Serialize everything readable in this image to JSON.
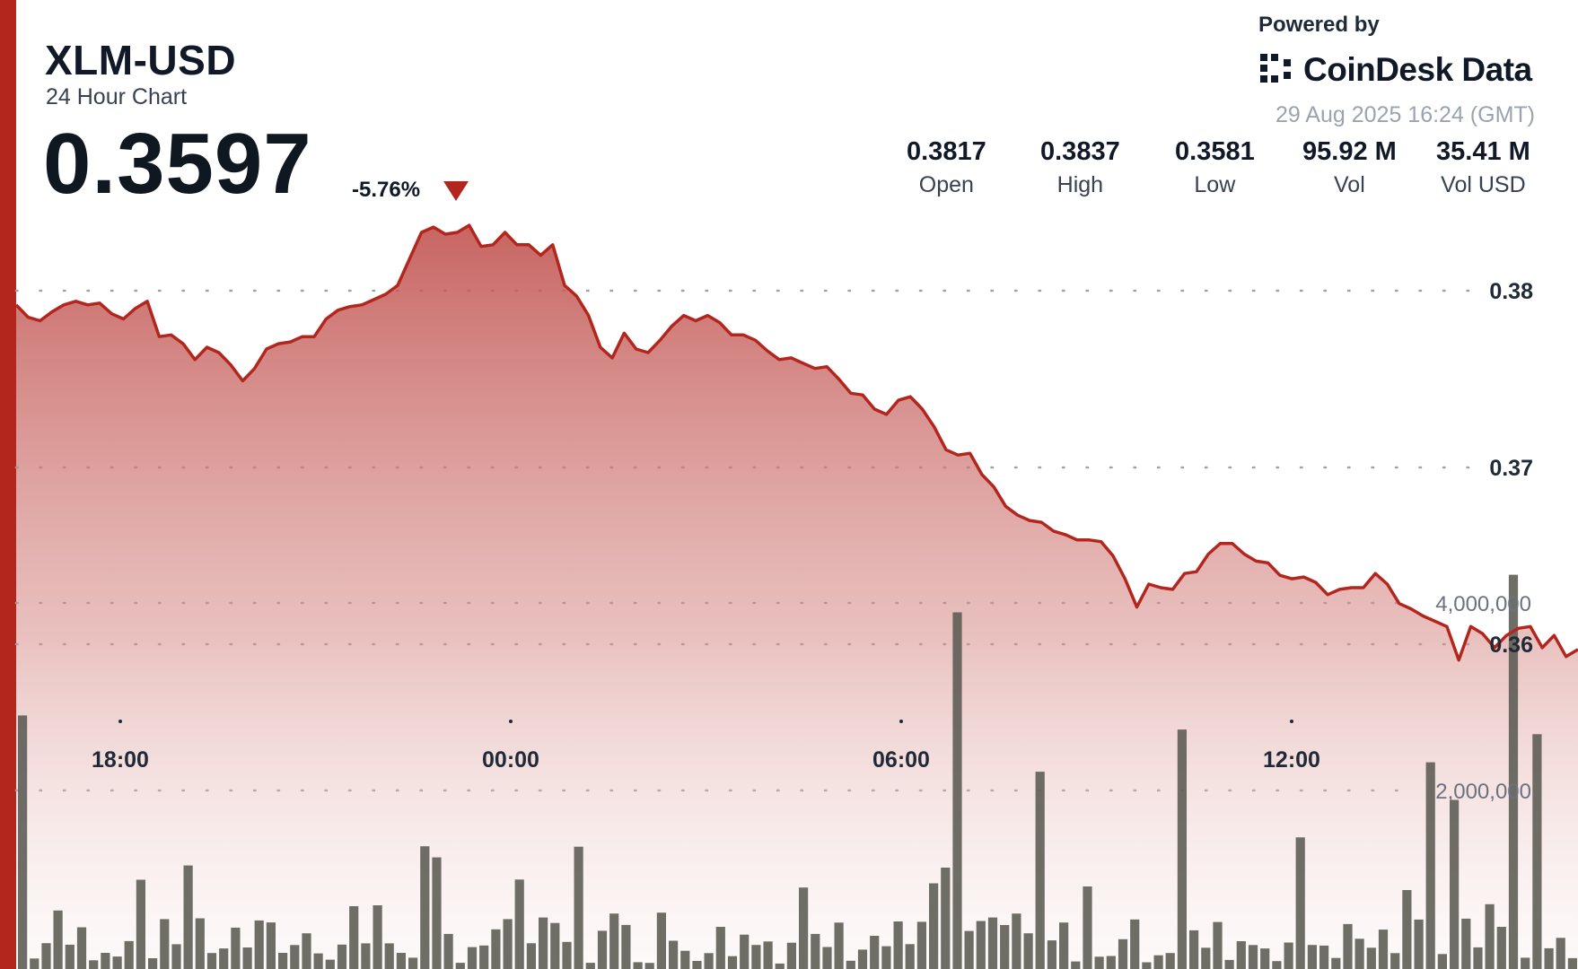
{
  "header": {
    "symbol": "XLM-USD",
    "subtitle": "24 Hour Chart",
    "price": "0.3597",
    "change": "-5.76%",
    "powered_by": "Powered by",
    "brand": "CoinDesk Data",
    "datetime": "29 Aug 2025 16:24 (GMT)"
  },
  "stats": [
    {
      "value": "0.3817",
      "label": "Open"
    },
    {
      "value": "0.3837",
      "label": "High"
    },
    {
      "value": "0.3581",
      "label": "Low"
    },
    {
      "value": "95.92 M",
      "label": "Vol"
    },
    {
      "value": "35.41 M",
      "label": "Vol USD"
    }
  ],
  "colors": {
    "accent": "#b3261e",
    "area_top": "#c0504d",
    "volume": "#5a5a52"
  },
  "chart_data": {
    "type": "area",
    "x_ticks": [
      "18:00",
      "00:00",
      "06:00",
      "12:00"
    ],
    "x_tick_hours": [
      1.6,
      7.6,
      13.6,
      19.6
    ],
    "x_range_hours": [
      0,
      24
    ],
    "price_axis": {
      "ticks": [
        0.36,
        0.37,
        0.38
      ],
      "labels": [
        "0.36",
        "0.37",
        "0.38"
      ],
      "range": [
        0.345,
        0.3885
      ]
    },
    "volume_axis": {
      "ticks": [
        2000000,
        4000000
      ],
      "labels": [
        "2,000,000",
        "4,000,000"
      ],
      "max": 4900000
    },
    "grid": true,
    "price": [
      0.3792,
      0.3785,
      0.3783,
      0.3788,
      0.3792,
      0.3794,
      0.3792,
      0.3793,
      0.3787,
      0.3784,
      0.379,
      0.3794,
      0.3774,
      0.3775,
      0.377,
      0.3761,
      0.3768,
      0.3765,
      0.3758,
      0.3749,
      0.3756,
      0.3767,
      0.377,
      0.3771,
      0.3774,
      0.3774,
      0.3784,
      0.3789,
      0.3791,
      0.3792,
      0.3795,
      0.3798,
      0.3803,
      0.3818,
      0.3833,
      0.3836,
      0.3832,
      0.3833,
      0.3837,
      0.3825,
      0.3826,
      0.3833,
      0.3826,
      0.3826,
      0.382,
      0.3826,
      0.3803,
      0.3797,
      0.3786,
      0.3768,
      0.3762,
      0.3776,
      0.3767,
      0.3765,
      0.3772,
      0.378,
      0.3786,
      0.3783,
      0.3786,
      0.3782,
      0.3775,
      0.3775,
      0.3772,
      0.3766,
      0.3761,
      0.3762,
      0.3759,
      0.3756,
      0.3757,
      0.375,
      0.3742,
      0.3741,
      0.3733,
      0.373,
      0.3738,
      0.374,
      0.3733,
      0.3723,
      0.371,
      0.3707,
      0.3708,
      0.3696,
      0.3689,
      0.3678,
      0.3673,
      0.367,
      0.3669,
      0.3664,
      0.3662,
      0.3659,
      0.3659,
      0.3658,
      0.365,
      0.3637,
      0.3621,
      0.3634,
      0.3632,
      0.3631,
      0.364,
      0.3641,
      0.3651,
      0.3657,
      0.3657,
      0.3651,
      0.3647,
      0.3646,
      0.3639,
      0.3637,
      0.3638,
      0.3635,
      0.3628,
      0.3631,
      0.3632,
      0.3632,
      0.364,
      0.3634,
      0.3623,
      0.362,
      0.3616,
      0.3613,
      0.361,
      0.3591,
      0.361,
      0.3606,
      0.3598,
      0.3605,
      0.3609,
      0.361,
      0.3598,
      0.3605,
      0.3593,
      0.3597
    ]
  }
}
